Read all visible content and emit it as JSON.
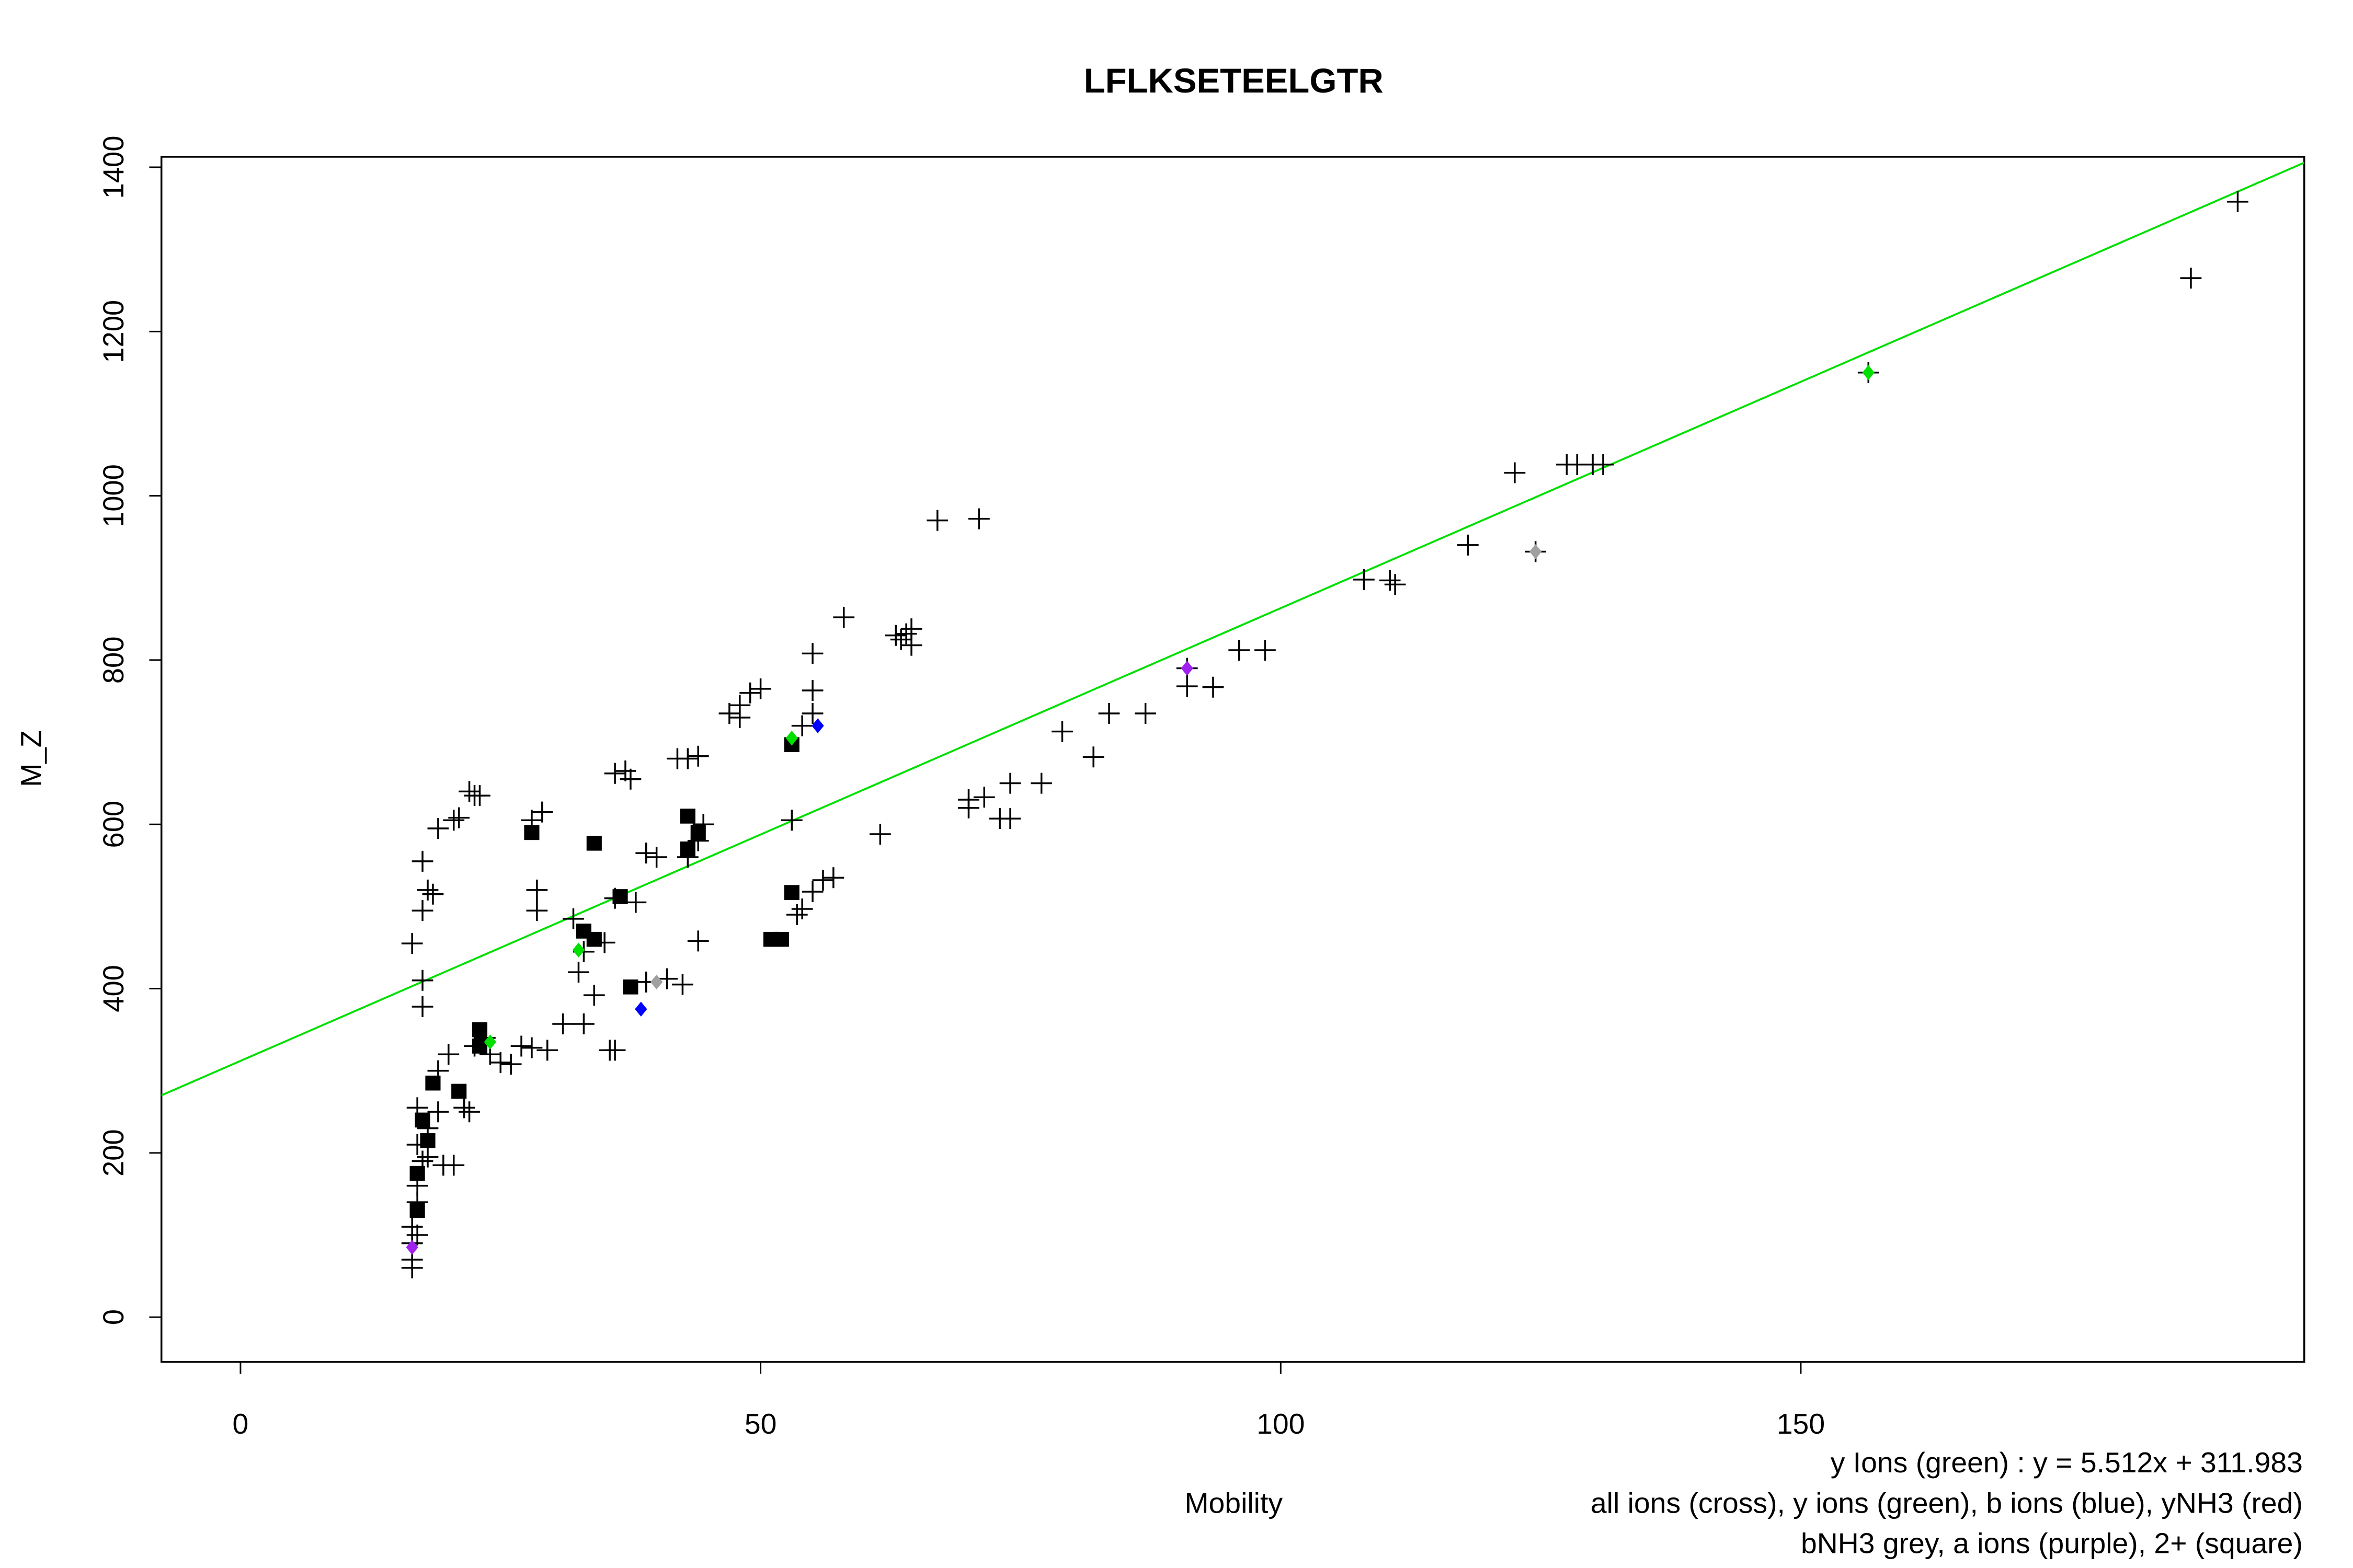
{
  "chart_data": {
    "type": "scatter",
    "title": "LFLKSETEELGTR",
    "xlabel": "Mobility",
    "ylabel": "M_Z",
    "xlim": [
      -7.6,
      198.4
    ],
    "ylim": [
      -54.5,
      1412.7
    ],
    "xticks": [
      0,
      50,
      100,
      150
    ],
    "yticks": [
      0,
      200,
      400,
      600,
      800,
      1000,
      1200,
      1400
    ],
    "fit": {
      "slope": 5.512,
      "intercept": 311.983,
      "color": "#00e000"
    },
    "annotations": [
      "y Ions (green) : y = 5.512x + 311.983",
      "all ions (cross), y ions (green), b ions (blue), yNH3 (red)",
      "bNH3 grey, a ions (purple), 2+ (square)"
    ],
    "series": [
      {
        "marker": "cross",
        "color": "#000000",
        "x": [
          192,
          187.5,
          156.5,
          122.5,
          127.5,
          128.5,
          130,
          131,
          124.5,
          118,
          108,
          110.5,
          111,
          98.5,
          96,
          93.5,
          91,
          91,
          87,
          83.5,
          82,
          79,
          77,
          74,
          73,
          74,
          71.5,
          70,
          70,
          71,
          67,
          61.5,
          58,
          55,
          63,
          64,
          64.5,
          64.5,
          63.5,
          57,
          56,
          55,
          53.5,
          54,
          53,
          55,
          55,
          54,
          50,
          49,
          48,
          47,
          48,
          44,
          43,
          42,
          44.5,
          44,
          43,
          44,
          42.5,
          41,
          39,
          39,
          40,
          37,
          37.5,
          36,
          38,
          36,
          35.5,
          36,
          34,
          35,
          33,
          32.5,
          32,
          33,
          31,
          29.5,
          28,
          27,
          28.5,
          28.5,
          29,
          28,
          26,
          25,
          24,
          23.5,
          22.5,
          22,
          22.5,
          23,
          21,
          20.5,
          19,
          18,
          18.5,
          17.5,
          17.5,
          17.5,
          17.5,
          16.5,
          19,
          20,
          21.5,
          22,
          19,
          19.5,
          20.5,
          18,
          17,
          17,
          16.5,
          16.5,
          16.5,
          16.5,
          17,
          17.5,
          18,
          17,
          17
        ],
        "values": [
          1358,
          1265,
          1150,
          1028,
          1038,
          1038,
          1038,
          1038,
          932,
          940,
          898,
          897,
          892,
          812,
          812,
          767,
          768,
          790,
          735,
          735,
          682,
          713,
          650,
          650,
          607,
          607,
          633,
          620,
          630,
          972,
          970,
          588,
          852,
          808,
          830,
          832,
          838,
          818,
          825,
          535,
          532,
          518,
          490,
          497,
          605,
          763,
          735,
          720,
          765,
          760,
          745,
          735,
          730,
          683,
          680,
          680,
          600,
          580,
          560,
          458,
          405,
          412,
          408,
          565,
          560,
          665,
          655,
          662,
          505,
          510,
          325,
          325,
          392,
          456,
          445,
          420,
          485,
          357,
          357,
          325,
          328,
          330,
          520,
          495,
          615,
          605,
          308,
          310,
          320,
          340,
          330,
          640,
          635,
          635,
          608,
          605,
          595,
          520,
          515,
          495,
          555,
          410,
          378,
          455,
          250,
          320,
          255,
          250,
          300,
          185,
          185,
          195,
          160,
          140,
          110,
          90,
          70,
          60,
          210,
          190,
          230,
          255,
          100
        ]
      },
      {
        "marker": "square",
        "color": "#000000",
        "x": [
          17,
          17,
          17.5,
          18,
          18.5,
          21,
          23,
          23,
          28,
          34,
          36.5,
          37.5,
          33,
          34,
          43,
          43,
          44,
          52,
          51,
          53,
          53
        ],
        "values": [
          130,
          175,
          240,
          215,
          285,
          275,
          350,
          330,
          590,
          577,
          512,
          402,
          470,
          460,
          610,
          570,
          590,
          460,
          460,
          517,
          697
        ]
      },
      {
        "marker": "dot",
        "color": "#00e000",
        "x": [
          156.5,
          53,
          32.5,
          24
        ],
        "values": [
          1150,
          705,
          447,
          335
        ]
      },
      {
        "marker": "dot",
        "color": "#0000ff",
        "x": [
          55.5,
          38.5
        ],
        "values": [
          720,
          375
        ]
      },
      {
        "marker": "dot",
        "color": "#a0a0a0",
        "x": [
          124.5,
          40
        ],
        "values": [
          932,
          408
        ]
      },
      {
        "marker": "dot",
        "color": "#a020f0",
        "x": [
          91,
          16.5
        ],
        "values": [
          790,
          85
        ]
      }
    ]
  }
}
